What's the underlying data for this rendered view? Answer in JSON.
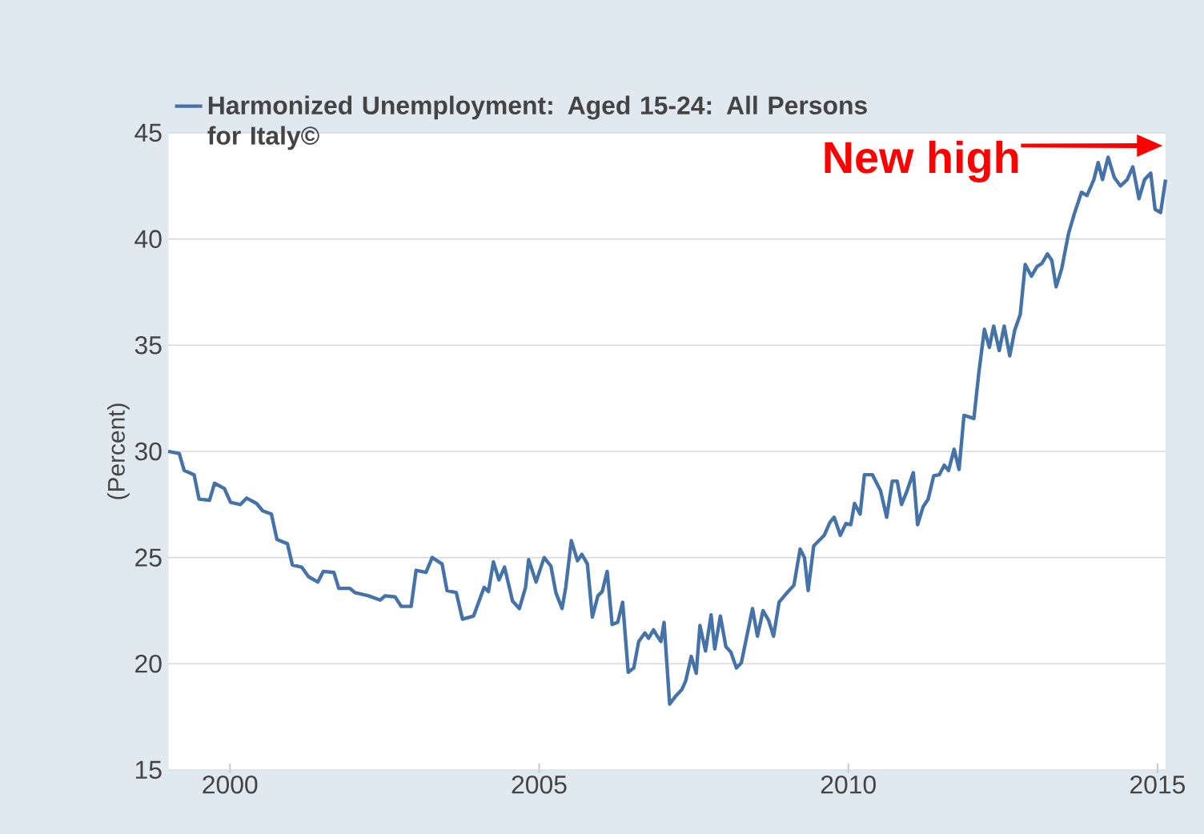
{
  "chart_data": {
    "type": "line",
    "ylabel": "(Percent)",
    "xlim": [
      1999,
      2015.13
    ],
    "ylim": [
      15,
      45
    ],
    "xticks": [
      2000,
      2005,
      2010,
      2015
    ],
    "yticks": [
      15,
      20,
      25,
      30,
      35,
      40,
      45
    ],
    "grid": "y",
    "legend": "top left",
    "marker": "none",
    "line_style": "solid",
    "annotations": [
      "New high"
    ],
    "series": [
      {
        "name": "Harmonized Unemployment: Aged 15-24: All Persons for Italy©",
        "color": "#4572a7",
        "x": [
          1999.0,
          1999.18,
          1999.26,
          1999.42,
          1999.5,
          1999.67,
          1999.75,
          1999.91,
          2000.01,
          2000.17,
          2000.27,
          2000.43,
          2000.53,
          2000.67,
          2000.76,
          2000.93,
          2001.01,
          2001.16,
          2001.27,
          2001.42,
          2001.51,
          2001.68,
          2001.76,
          2001.94,
          2002.02,
          2002.24,
          2002.43,
          2002.51,
          2002.67,
          2002.77,
          2002.93,
          2003.01,
          2003.17,
          2003.27,
          2003.43,
          2003.51,
          2003.66,
          2003.76,
          2003.94,
          2004.11,
          2004.18,
          2004.26,
          2004.35,
          2004.44,
          2004.57,
          2004.68,
          2004.78,
          2004.83,
          2004.95,
          2005.08,
          2005.19,
          2005.27,
          2005.37,
          2005.43,
          2005.52,
          2005.62,
          2005.69,
          2005.78,
          2005.86,
          2005.95,
          2006.02,
          2006.1,
          2006.18,
          2006.27,
          2006.35,
          2006.44,
          2006.53,
          2006.61,
          2006.71,
          2006.77,
          2006.85,
          2006.91,
          2006.97,
          2007.02,
          2007.11,
          2007.2,
          2007.31,
          2007.37,
          2007.46,
          2007.54,
          2007.6,
          2007.69,
          2007.78,
          2007.84,
          2007.93,
          2008.02,
          2008.1,
          2008.19,
          2008.27,
          2008.45,
          2008.53,
          2008.62,
          2008.71,
          2008.79,
          2008.88,
          2008.98,
          2009.12,
          2009.22,
          2009.29,
          2009.35,
          2009.44,
          2009.61,
          2009.7,
          2009.77,
          2009.87,
          2009.96,
          2010.04,
          2010.1,
          2010.19,
          2010.26,
          2010.39,
          2010.52,
          2010.62,
          2010.71,
          2010.79,
          2010.86,
          2010.95,
          2011.05,
          2011.12,
          2011.21,
          2011.29,
          2011.38,
          2011.47,
          2011.55,
          2011.62,
          2011.71,
          2011.79,
          2011.87,
          2012.03,
          2012.11,
          2012.2,
          2012.28,
          2012.35,
          2012.44,
          2012.52,
          2012.61,
          2012.69,
          2012.78,
          2012.86,
          2012.96,
          2013.05,
          2013.13,
          2013.22,
          2013.29,
          2013.36,
          2013.45,
          2013.56,
          2013.65,
          2013.77,
          2013.86,
          2013.97,
          2014.04,
          2014.11,
          2014.2,
          2014.3,
          2014.4,
          2014.51,
          2014.6,
          2014.7,
          2014.79,
          2014.89,
          2014.96,
          2015.05,
          2015.13
        ],
        "values": [
          30.0,
          29.9,
          29.1,
          28.9,
          27.75,
          27.7,
          28.5,
          28.25,
          27.6,
          27.5,
          27.8,
          27.55,
          27.2,
          27.05,
          25.85,
          25.65,
          24.65,
          24.55,
          24.1,
          23.85,
          24.35,
          24.3,
          23.55,
          23.55,
          23.35,
          23.2,
          23.0,
          23.2,
          23.15,
          22.7,
          22.7,
          24.4,
          24.3,
          25.0,
          24.7,
          23.45,
          23.35,
          22.1,
          22.25,
          23.6,
          23.4,
          24.8,
          23.95,
          24.55,
          22.95,
          22.6,
          23.6,
          24.9,
          23.85,
          25.0,
          24.6,
          23.35,
          22.6,
          23.6,
          25.8,
          24.85,
          25.15,
          24.7,
          22.2,
          23.2,
          23.4,
          24.35,
          21.85,
          21.95,
          22.9,
          19.6,
          19.8,
          21.05,
          21.45,
          21.2,
          21.6,
          21.3,
          21.05,
          21.95,
          18.1,
          18.45,
          18.8,
          19.2,
          20.35,
          19.55,
          21.8,
          20.6,
          22.3,
          20.7,
          22.25,
          20.8,
          20.55,
          19.8,
          20.05,
          22.6,
          21.3,
          22.5,
          22.05,
          21.3,
          22.9,
          23.25,
          23.7,
          25.4,
          25.0,
          23.45,
          25.55,
          26.05,
          26.65,
          26.9,
          26.05,
          26.6,
          26.55,
          27.55,
          27.05,
          28.9,
          28.9,
          28.15,
          26.9,
          28.6,
          28.6,
          27.5,
          28.15,
          29.0,
          26.55,
          27.4,
          27.75,
          28.85,
          28.9,
          29.35,
          29.1,
          30.1,
          29.15,
          31.7,
          31.55,
          33.7,
          35.75,
          34.9,
          35.9,
          34.75,
          35.9,
          34.5,
          35.7,
          36.45,
          38.8,
          38.25,
          38.7,
          38.85,
          39.3,
          39.0,
          37.75,
          38.6,
          40.25,
          41.15,
          42.2,
          42.05,
          42.8,
          43.6,
          42.8,
          43.85,
          42.9,
          42.5,
          42.8,
          43.4,
          41.9,
          42.8,
          43.1,
          41.4,
          41.25,
          42.8
        ]
      }
    ]
  }
}
